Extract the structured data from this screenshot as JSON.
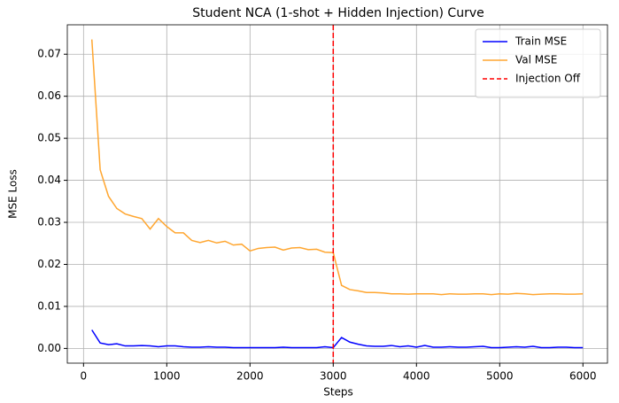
{
  "chart_data": {
    "type": "line",
    "title": "Student NCA (1-shot + Hidden Injection) Curve",
    "xlabel": "Steps",
    "ylabel": "MSE Loss",
    "x": [
      100,
      200,
      300,
      400,
      500,
      600,
      700,
      800,
      900,
      1000,
      1100,
      1200,
      1300,
      1400,
      1500,
      1600,
      1700,
      1800,
      1900,
      2000,
      2100,
      2200,
      2300,
      2400,
      2500,
      2600,
      2700,
      2800,
      2900,
      3000,
      3100,
      3200,
      3300,
      3400,
      3500,
      3600,
      3700,
      3800,
      3900,
      4000,
      4100,
      4200,
      4300,
      4400,
      4500,
      4600,
      4700,
      4800,
      4900,
      5000,
      5100,
      5200,
      5300,
      5400,
      5500,
      5600,
      5700,
      5800,
      5900,
      6000
    ],
    "series": [
      {
        "name": "Train MSE",
        "color": "#0000ff",
        "values": [
          0.0044,
          0.0013,
          0.0009,
          0.0011,
          0.0006,
          0.0006,
          0.0007,
          0.0006,
          0.0004,
          0.0006,
          0.0006,
          0.0004,
          0.0003,
          0.0003,
          0.0004,
          0.0003,
          0.0003,
          0.0002,
          0.0002,
          0.0002,
          0.0002,
          0.0002,
          0.0002,
          0.0003,
          0.0002,
          0.0002,
          0.0002,
          0.0002,
          0.0004,
          0.0002,
          0.0026,
          0.0015,
          0.001,
          0.0006,
          0.0005,
          0.0005,
          0.0007,
          0.0004,
          0.0006,
          0.0003,
          0.0007,
          0.0003,
          0.0003,
          0.0004,
          0.0003,
          0.0003,
          0.0004,
          0.0005,
          0.0002,
          0.0002,
          0.0003,
          0.0004,
          0.0003,
          0.0005,
          0.0002,
          0.0002,
          0.0003,
          0.0003,
          0.0002,
          0.0002
        ]
      },
      {
        "name": "Val MSE",
        "color": "#ffa630",
        "values": [
          0.0735,
          0.0425,
          0.0362,
          0.0333,
          0.032,
          0.0314,
          0.0309,
          0.0284,
          0.0309,
          0.029,
          0.0275,
          0.0275,
          0.0257,
          0.0252,
          0.0257,
          0.0251,
          0.0255,
          0.0246,
          0.0248,
          0.0232,
          0.0238,
          0.024,
          0.0241,
          0.0234,
          0.0239,
          0.024,
          0.0235,
          0.0236,
          0.0229,
          0.0228,
          0.015,
          0.014,
          0.0137,
          0.0133,
          0.0133,
          0.0132,
          0.013,
          0.013,
          0.0129,
          0.013,
          0.013,
          0.013,
          0.0128,
          0.013,
          0.0129,
          0.0129,
          0.013,
          0.013,
          0.0128,
          0.013,
          0.0129,
          0.0131,
          0.013,
          0.0128,
          0.0129,
          0.013,
          0.013,
          0.0129,
          0.0129,
          0.013
        ]
      }
    ],
    "vline": {
      "name": "Injection Off",
      "x": 3000,
      "color": "#ff0000"
    },
    "xlim": [
      -195,
      6295
    ],
    "xticks": [
      0,
      1000,
      2000,
      3000,
      4000,
      5000,
      6000
    ],
    "ylim": [
      -0.0035,
      0.077
    ],
    "yticks": [
      {
        "value": 0,
        "label": "0.00"
      },
      0.01,
      0.02,
      0.03,
      0.04,
      0.05,
      0.06,
      0.07
    ],
    "grid": true,
    "legend": "upper right"
  }
}
